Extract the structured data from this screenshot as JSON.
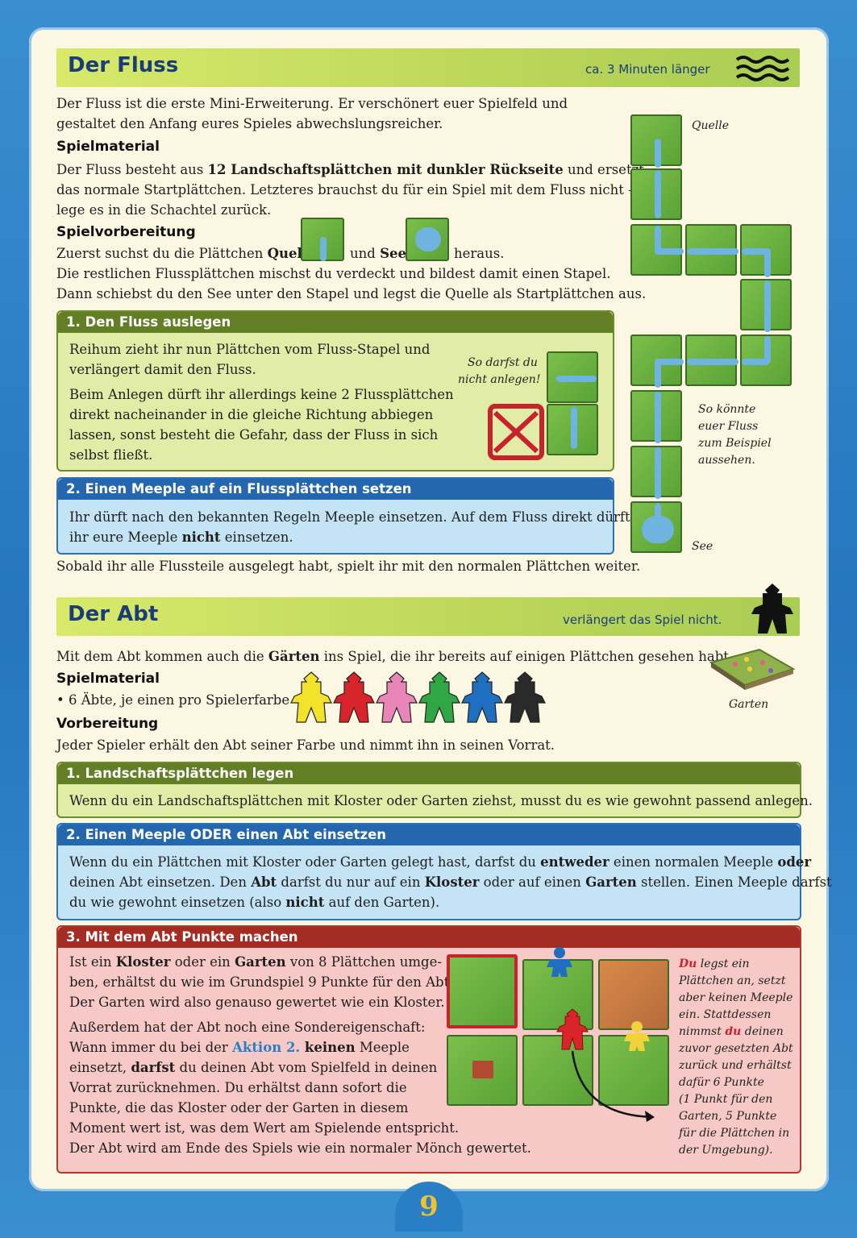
{
  "page_number": "9",
  "fluss": {
    "title": "Der Fluss",
    "hint": "ca. 3 Minuten länger",
    "intro_1": "Der Fluss ist die erste Mini-Erweiterung. Er verschönert euer Spielfeld und",
    "intro_2": "gestaltet den Anfang eures Spieles abwechslungsreicher.",
    "material_head": "Spielmaterial",
    "material_1a": "Der Fluss besteht aus ",
    "material_1b": "12 Landschaftsplättchen mit dunkler Rückseite",
    "material_1c": " und ersetzt",
    "material_2": "das normale Startplättchen. Letzteres brauchst du für ein Spiel mit dem Fluss nicht –",
    "material_3": "lege es in die Schachtel zurück.",
    "prep_head": "Spielvorbereitung",
    "prep_1a": "Zuerst suchst du die Plättchen ",
    "prep_1b": "Quelle",
    "prep_1c": "und ",
    "prep_1d": "See",
    "prep_1e": "heraus.",
    "prep_2": "Die restlichen Flussplättchen mischst du verdeckt und bildest damit einen Stapel.",
    "prep_3": "Dann schiebst du den See unter den Stapel und legst die Quelle als Startplättchen aus.",
    "box1_title": "1. Den Fluss auslegen",
    "box1_p1_1": "Reihum zieht ihr nun Plättchen vom Fluss-Stapel und",
    "box1_p1_2": "verlängert damit den Fluss.",
    "box1_p2_1": "Beim Anlegen dürft ihr allerdings keine 2 Flussplättchen",
    "box1_p2_2": "direkt nacheinander in die gleiche Richtung abbiegen",
    "box1_p2_3": "lassen, sonst besteht die Gefahr, dass der Fluss in sich",
    "box1_p2_4": "selbst fließt.",
    "box1_caption_1": "So darfst du",
    "box1_caption_2": "nicht anlegen!",
    "box2_title": "2. Einen Meeple auf ein Flussplättchen setzen",
    "box2_1": "Ihr dürft nach den bekannten Regeln Meeple einsetzen. Auf dem Fluss direkt dürft",
    "box2_2a": "ihr eure Meeple ",
    "box2_2b": "nicht",
    "box2_2c": " einsetzen.",
    "outro": "Sobald ihr alle Flussteile ausgelegt habt, spielt ihr mit den normalen Plättchen weiter.",
    "cap_quelle": "Quelle",
    "cap_example_1": "So könnte",
    "cap_example_2": "euer Fluss",
    "cap_example_3": "zum Beispiel",
    "cap_example_4": "aussehen.",
    "cap_see": "See"
  },
  "abt": {
    "title": "Der Abt",
    "hint": "verlängert das Spiel nicht.",
    "intro_a": "Mit dem Abt kommen auch die ",
    "intro_b": "Gärten",
    "intro_c": " ins Spiel, die ihr bereits auf einigen Plättchen gesehen habt.",
    "material_head": "Spielmaterial",
    "material_1": "• 6 Äbte, je einen pro Spielerfarbe",
    "garden_caption": "Garten",
    "prep_head": "Vorbereitung",
    "prep_1": "Jeder Spieler erhält den Abt seiner Farbe und nimmt ihn in seinen Vorrat.",
    "abbot_colors": [
      "#f2e32a",
      "#d9242b",
      "#e985b8",
      "#2fa744",
      "#1f6fc0",
      "#2a2a2a"
    ],
    "box1_title": "1. Landschaftsplättchen legen",
    "box1_1": "Wenn du ein Landschaftsplättchen mit Kloster oder Garten ziehst, musst du es wie gewohnt passend anlegen.",
    "box2_title": "2. Einen Meeple ODER einen Abt einsetzen",
    "box2_1a": "Wenn du ein Plättchen mit Kloster oder Garten gelegt hast, darfst du ",
    "box2_1b": "entweder",
    "box2_1c": " einen normalen Meeple ",
    "box2_1d": "oder",
    "box2_2a": "deinen Abt einsetzen. Den ",
    "box2_2b": "Abt",
    "box2_2c": " darfst du nur auf ein ",
    "box2_2d": "Kloster",
    "box2_2e": " oder auf einen ",
    "box2_2f": "Garten",
    "box2_2g": " stellen. Einen Meeple darfst",
    "box2_3a": "du wie gewohnt einsetzen (also ",
    "box2_3b": "nicht",
    "box2_3c": " auf den Garten).",
    "box3_title": "3. Mit dem Abt Punkte machen",
    "box3_1a": "Ist ein ",
    "box3_1b": "Kloster",
    "box3_1c": " oder ein ",
    "box3_1d": "Garten",
    "box3_1e": " von 8 Plättchen umge-",
    "box3_2": "ben, erhältst du wie im Grundspiel 9 Punkte für den Abt.",
    "box3_3": "Der Garten wird also genauso gewertet wie ein Kloster.",
    "box3_4": "Außerdem hat der Abt noch eine Sondereigenschaft:",
    "box3_5a": "Wann immer du bei der ",
    "box3_5b": "Aktion 2.",
    "box3_5c": " keinen",
    "box3_5d": " Meeple",
    "box3_6a": "einsetzt, ",
    "box3_6b": "darfst",
    "box3_6c": " du deinen Abt vom Spielfeld in deinen",
    "box3_7": "Vorrat zurücknehmen. Du erhältst dann sofort die",
    "box3_8": "Punkte, die das Kloster oder der Garten in diesem",
    "box3_9": "Moment wert ist, was dem Wert am Spielende entspricht.",
    "box3_10": "Der Abt wird am Ende des Spiels wie ein normaler Mönch gewertet.",
    "side_1a": "Du",
    "side_1b": " legst ein",
    "side_2": "Plättchen an, setzt",
    "side_3": "aber keinen Meeple",
    "side_4": "ein. Stattdessen",
    "side_5a": "nimmst ",
    "side_5b": "du",
    "side_5c": " deinen",
    "side_6": "zuvor gesetzten Abt",
    "side_7": "zurück und erhältst",
    "side_8": "dafür 6 Punkte",
    "side_9": "(1 Punkt für den",
    "side_10": "Garten, 5 Punkte",
    "side_11": "für die Plättchen in",
    "side_12": "der Umgebung)."
  }
}
